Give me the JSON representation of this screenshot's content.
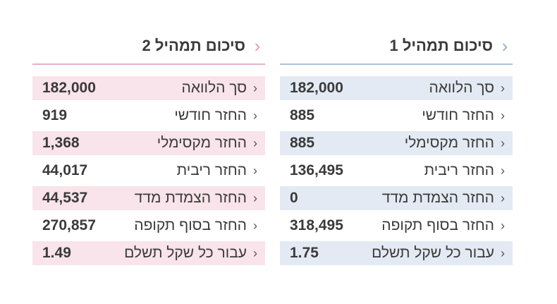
{
  "panels": [
    {
      "title": "סיכום תמהיל 1",
      "rows": [
        {
          "label": "סך הלוואה",
          "value": "182,000"
        },
        {
          "label": "החזר חודשי",
          "value": "885"
        },
        {
          "label": "החזר מקסימלי",
          "value": "885"
        },
        {
          "label": "החזר ריבית",
          "value": "136,495"
        },
        {
          "label": "החזר הצמדת מדד",
          "value": "0"
        },
        {
          "label": "החזר בסוף תקופה",
          "value": "318,495"
        },
        {
          "label": "עבור כל שקל תשלם",
          "value": "1.75"
        }
      ]
    },
    {
      "title": "סיכום תמהיל 2",
      "rows": [
        {
          "label": "סך הלוואה",
          "value": "182,000"
        },
        {
          "label": "החזר חודשי",
          "value": "919"
        },
        {
          "label": "החזר מקסימלי",
          "value": "1,368"
        },
        {
          "label": "החזר ריבית",
          "value": "44,017"
        },
        {
          "label": "החזר הצמדת מדד",
          "value": "44,537"
        },
        {
          "label": "החזר בסוף תקופה",
          "value": "270,857"
        },
        {
          "label": "עבור כל שקל תשלם",
          "value": "1.49"
        }
      ]
    }
  ],
  "icons": {
    "header_chevron": "chevron-left-icon",
    "row_chevron": "chevron-left-icon"
  },
  "colors": {
    "panel1_accent": "#a9c3df",
    "panel1_shade": "#e3eaf3",
    "panel2_accent": "#e3b2c9",
    "panel2_shade": "#f8e4ea",
    "text": "#3a3a3a"
  }
}
